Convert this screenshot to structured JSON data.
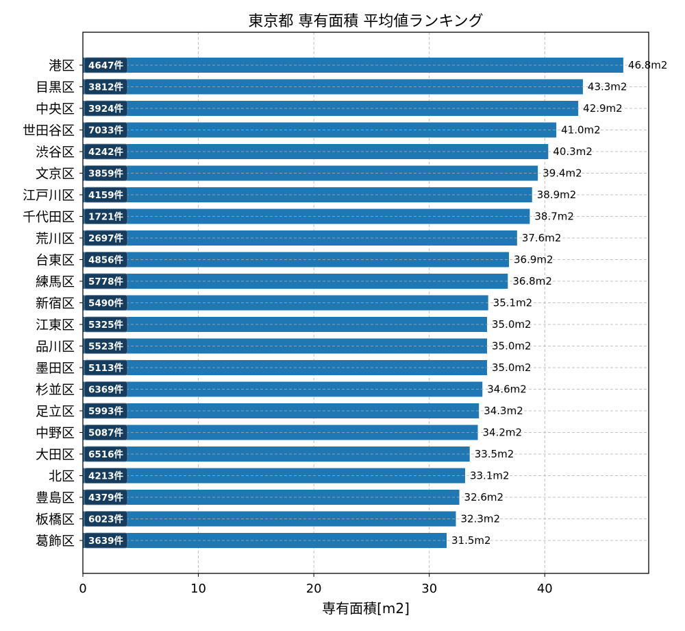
{
  "chart_data": {
    "type": "bar",
    "orientation": "horizontal",
    "title": "東京都 専有面積 平均値ランキング",
    "xlabel": "専有面積[m2]",
    "ylabel": "",
    "xlim": [
      0,
      49
    ],
    "xticks": [
      0,
      10,
      20,
      30,
      40
    ],
    "grid": true,
    "bar_color": "#1f77b4",
    "count_badge_color": "#173d5e",
    "value_suffix": "m2",
    "count_suffix": "件",
    "categories": [
      "港区",
      "目黒区",
      "中央区",
      "世田谷区",
      "渋谷区",
      "文京区",
      "江戸川区",
      "千代田区",
      "荒川区",
      "台東区",
      "練馬区",
      "新宿区",
      "江東区",
      "品川区",
      "墨田区",
      "杉並区",
      "足立区",
      "中野区",
      "大田区",
      "北区",
      "豊島区",
      "板橋区",
      "葛飾区"
    ],
    "values": [
      46.8,
      43.3,
      42.9,
      41.0,
      40.3,
      39.4,
      38.9,
      38.7,
      37.6,
      36.9,
      36.8,
      35.1,
      35.0,
      35.0,
      35.0,
      34.6,
      34.3,
      34.2,
      33.5,
      33.1,
      32.6,
      32.3,
      31.5
    ],
    "counts": [
      4647,
      3812,
      3924,
      7033,
      4242,
      3859,
      4159,
      1721,
      2697,
      4856,
      5778,
      5490,
      5325,
      5523,
      5113,
      6369,
      5993,
      5087,
      6516,
      4213,
      4379,
      6023,
      3639
    ]
  }
}
